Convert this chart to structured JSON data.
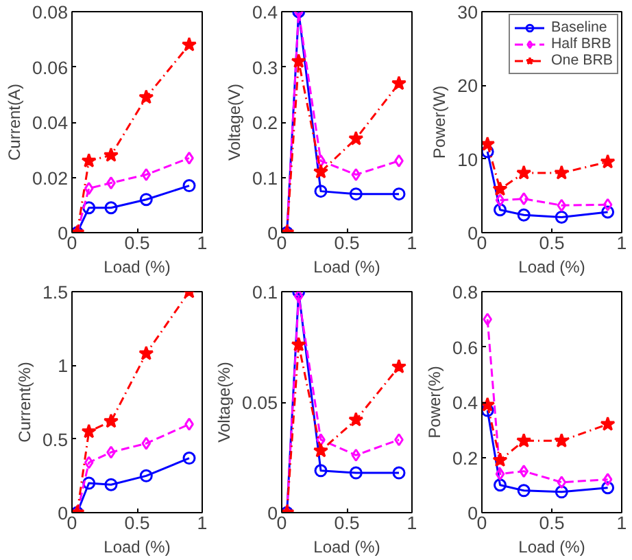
{
  "chart_data": [
    {
      "type": "line",
      "xlabel": "Load (%)",
      "ylabel": "Current(A)",
      "xlim": [
        0,
        1
      ],
      "xticks": [
        0,
        0.5,
        1
      ],
      "ylim": [
        0,
        0.08
      ],
      "yticks": [
        0,
        0.02,
        0.04,
        0.06,
        0.08
      ],
      "grid": false,
      "legend": false,
      "x": [
        0.04,
        0.13,
        0.3,
        0.57,
        0.9
      ],
      "series": [
        {
          "color": "#0000ff",
          "marker": "circle",
          "line_style": "solid",
          "values": [
            0,
            0.009,
            0.009,
            0.012,
            0.017
          ]
        },
        {
          "color": "#ff00ff",
          "marker": "diamond",
          "line_style": "dashed",
          "values": [
            0,
            0.016,
            0.018,
            0.021,
            0.027
          ]
        },
        {
          "color": "#ff0000",
          "marker": "star",
          "line_style": "dotted",
          "values": [
            0,
            0.026,
            0.028,
            0.049,
            0.068
          ]
        }
      ]
    },
    {
      "type": "line",
      "xlabel": "Load (%)",
      "ylabel": "Voltage(V)",
      "xlim": [
        0,
        1
      ],
      "xticks": [
        0,
        0.5,
        1
      ],
      "ylim": [
        0,
        0.4
      ],
      "yticks": [
        0,
        0.1,
        0.2,
        0.3,
        0.4
      ],
      "grid": false,
      "legend": false,
      "x": [
        0.04,
        0.13,
        0.3,
        0.57,
        0.9
      ],
      "series": [
        {
          "color": "#0000ff",
          "marker": "circle",
          "line_style": "solid",
          "values": [
            0,
            0.4,
            0.075,
            0.07,
            0.07
          ]
        },
        {
          "color": "#ff00ff",
          "marker": "diamond",
          "line_style": "dashed",
          "values": [
            0,
            0.4,
            0.13,
            0.105,
            0.13
          ]
        },
        {
          "color": "#ff0000",
          "marker": "star",
          "line_style": "dotted",
          "values": [
            0,
            0.31,
            0.11,
            0.17,
            0.27
          ]
        }
      ]
    },
    {
      "type": "line",
      "xlabel": "Load (%)",
      "ylabel": "Power(W)",
      "xlim": [
        0,
        1
      ],
      "xticks": [
        0,
        0.5,
        1
      ],
      "ylim": [
        0,
        30
      ],
      "yticks": [
        0,
        10,
        20,
        30
      ],
      "grid": false,
      "legend": "top right",
      "x": [
        0.04,
        0.13,
        0.3,
        0.57,
        0.9
      ],
      "series": [
        {
          "name": "Baseline",
          "color": "#0000ff",
          "marker": "circle",
          "line_style": "solid",
          "values": [
            11,
            3.1,
            2.4,
            2.1,
            2.8
          ]
        },
        {
          "name": "Half BRB",
          "color": "#ff00ff",
          "marker": "diamond",
          "line_style": "dashed",
          "values": [
            null,
            4.4,
            4.6,
            3.7,
            3.8
          ]
        },
        {
          "name": "One BRB",
          "color": "#ff0000",
          "marker": "star",
          "line_style": "dotted",
          "values": [
            12,
            5.9,
            8.1,
            8.1,
            9.6
          ]
        }
      ]
    },
    {
      "type": "line",
      "xlabel": "Load (%)",
      "ylabel": "Current(%)",
      "xlim": [
        0,
        1
      ],
      "xticks": [
        0,
        0.5,
        1
      ],
      "ylim": [
        0,
        1.5
      ],
      "yticks": [
        0,
        0.5,
        1,
        1.5
      ],
      "grid": false,
      "legend": false,
      "x": [
        0.04,
        0.13,
        0.3,
        0.57,
        0.9
      ],
      "series": [
        {
          "color": "#0000ff",
          "marker": "circle",
          "line_style": "solid",
          "values": [
            0,
            0.2,
            0.19,
            0.25,
            0.37
          ]
        },
        {
          "color": "#ff00ff",
          "marker": "diamond",
          "line_style": "dashed",
          "values": [
            0,
            0.34,
            0.41,
            0.47,
            0.6
          ]
        },
        {
          "color": "#ff0000",
          "marker": "star",
          "line_style": "dotted",
          "values": [
            0,
            0.55,
            0.62,
            1.08,
            1.5
          ]
        }
      ]
    },
    {
      "type": "line",
      "xlabel": "Load (%)",
      "ylabel": "Voltage(%)",
      "xlim": [
        0,
        1
      ],
      "xticks": [
        0,
        0.5,
        1
      ],
      "ylim": [
        0,
        0.1
      ],
      "yticks": [
        0,
        0.05,
        0.1
      ],
      "grid": false,
      "legend": false,
      "x": [
        0.04,
        0.13,
        0.3,
        0.57,
        0.9
      ],
      "series": [
        {
          "color": "#0000ff",
          "marker": "circle",
          "line_style": "solid",
          "values": [
            0,
            0.1,
            0.019,
            0.018,
            0.018
          ]
        },
        {
          "color": "#ff00ff",
          "marker": "diamond",
          "line_style": "dashed",
          "values": [
            0,
            0.098,
            0.033,
            0.026,
            0.033
          ]
        },
        {
          "color": "#ff0000",
          "marker": "star",
          "line_style": "dotted",
          "values": [
            0,
            0.076,
            0.028,
            0.042,
            0.066
          ]
        }
      ]
    },
    {
      "type": "line",
      "xlabel": "Load (%)",
      "ylabel": "Power(%)",
      "xlim": [
        0,
        1
      ],
      "xticks": [
        0,
        0.5,
        1
      ],
      "ylim": [
        0,
        0.8
      ],
      "yticks": [
        0,
        0.2,
        0.4,
        0.6,
        0.8
      ],
      "grid": false,
      "legend": false,
      "x": [
        0.04,
        0.13,
        0.3,
        0.57,
        0.9
      ],
      "series": [
        {
          "color": "#0000ff",
          "marker": "circle",
          "line_style": "solid",
          "values": [
            0.37,
            0.1,
            0.08,
            0.075,
            0.09
          ]
        },
        {
          "color": "#ff00ff",
          "marker": "diamond",
          "line_style": "dashed",
          "values": [
            0.7,
            0.14,
            0.15,
            0.11,
            0.12
          ]
        },
        {
          "color": "#ff0000",
          "marker": "star",
          "line_style": "dotted",
          "values": [
            0.39,
            0.19,
            0.26,
            0.26,
            0.32
          ]
        }
      ]
    }
  ]
}
